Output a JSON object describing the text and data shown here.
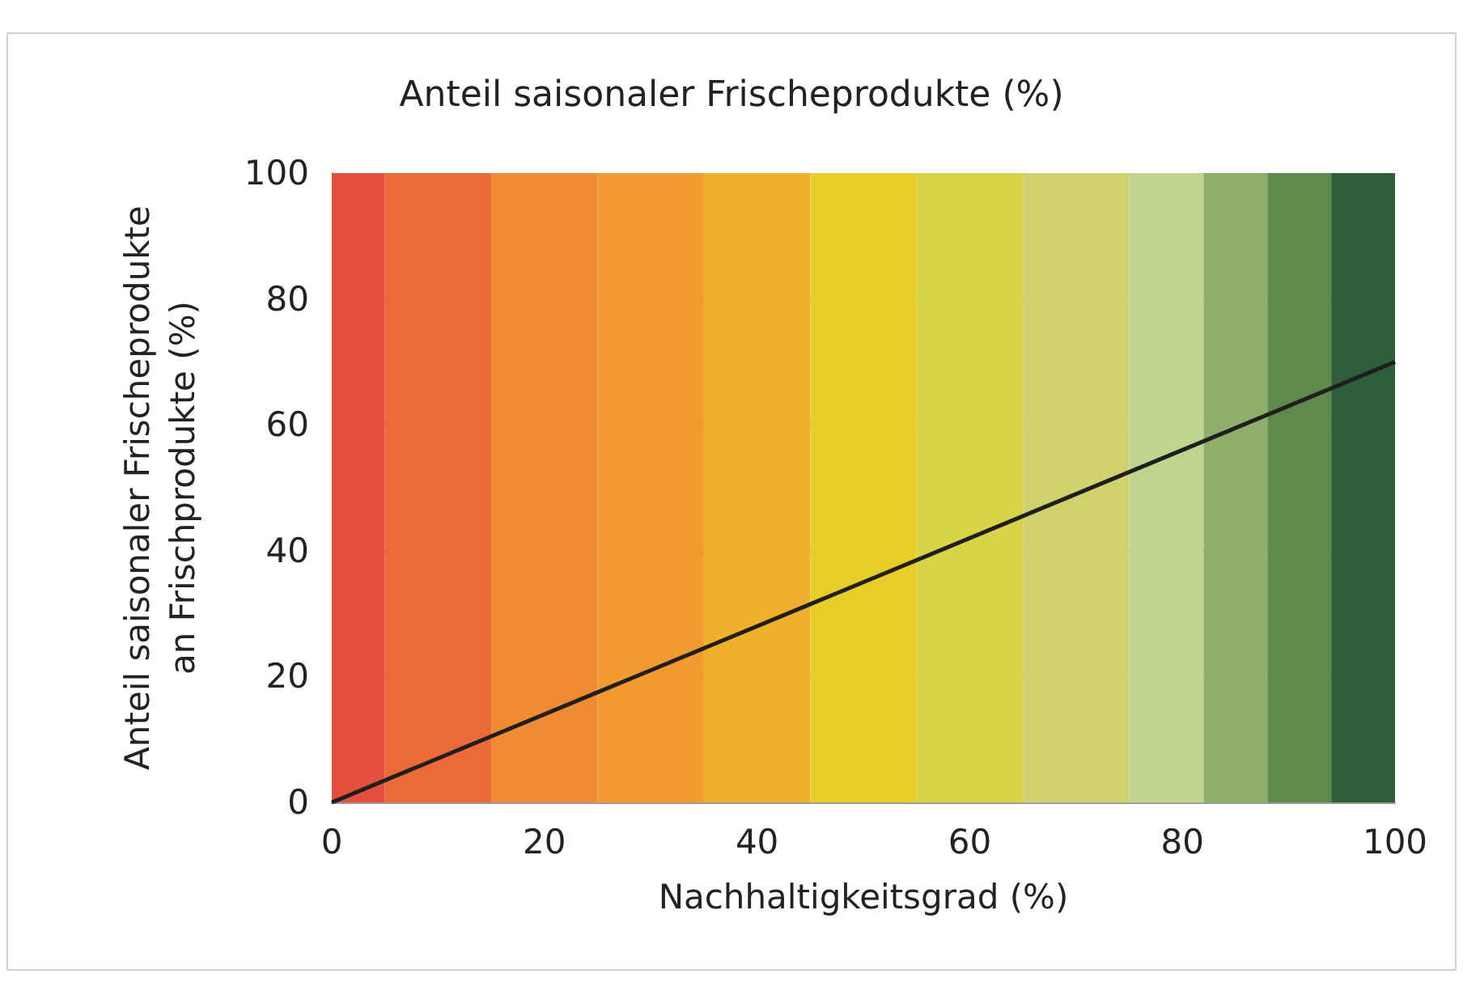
{
  "chart_data": {
    "type": "line",
    "title": "Anteil saisonaler Frischeprodukte (%)",
    "xlabel": "Nachhaltigkeitsgrad (%)",
    "ylabel": "Anteil saisonaler Frischeprodukte an Frischprodukte (%)",
    "series": [
      {
        "color": "#1f1f1f",
        "x": [
          0,
          100
        ],
        "values": [
          0,
          70
        ]
      }
    ],
    "xlim": [
      0,
      100
    ],
    "xticks": [
      0,
      20,
      40,
      60,
      80,
      100
    ],
    "ylim": [
      0,
      100
    ],
    "yticks": [
      0,
      20,
      40,
      60,
      80,
      100
    ],
    "grid": "y",
    "marker": "none",
    "line_style": "solid",
    "bands": [
      {
        "axis": "x",
        "from": 0,
        "to": 5,
        "color": "#e4503d"
      },
      {
        "axis": "x",
        "from": 5,
        "to": 15,
        "color": "#ec6a38"
      },
      {
        "axis": "x",
        "from": 15,
        "to": 25,
        "color": "#ef8c33"
      },
      {
        "axis": "x",
        "from": 25,
        "to": 35,
        "color": "#f19a30"
      },
      {
        "axis": "x",
        "from": 35,
        "to": 45,
        "color": "#f0b02c"
      },
      {
        "axis": "x",
        "from": 45,
        "to": 55,
        "color": "#e8cd2a"
      },
      {
        "axis": "x",
        "from": 55,
        "to": 65,
        "color": "#d9d347"
      },
      {
        "axis": "x",
        "from": 65,
        "to": 75,
        "color": "#cfd26e"
      },
      {
        "axis": "x",
        "from": 75,
        "to": 82,
        "color": "#c0d490"
      },
      {
        "axis": "x",
        "from": 82,
        "to": 88,
        "color": "#8fae6c"
      },
      {
        "axis": "x",
        "from": 88,
        "to": 94,
        "color": "#5f8a4e"
      },
      {
        "axis": "x",
        "from": 94,
        "to": 100,
        "color": "#2f5e3a"
      }
    ]
  }
}
